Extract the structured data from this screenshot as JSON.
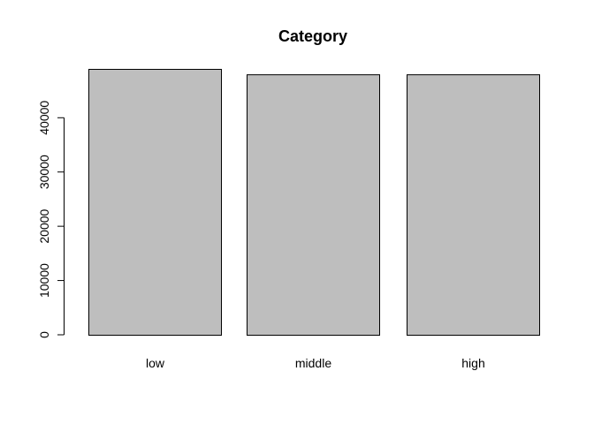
{
  "chart_data": {
    "type": "bar",
    "title": "Category",
    "categories": [
      "low",
      "middle",
      "high"
    ],
    "values": [
      49000,
      48000,
      48000
    ],
    "ylim": [
      0,
      49000
    ],
    "yticks": [
      0,
      10000,
      20000,
      30000,
      40000
    ],
    "ytick_labels": [
      "0",
      "10000",
      "20000",
      "30000",
      "40000"
    ],
    "bar_color": "#bebebe",
    "border_color": "#000000",
    "grid": false,
    "xlabel": "",
    "ylabel": ""
  }
}
